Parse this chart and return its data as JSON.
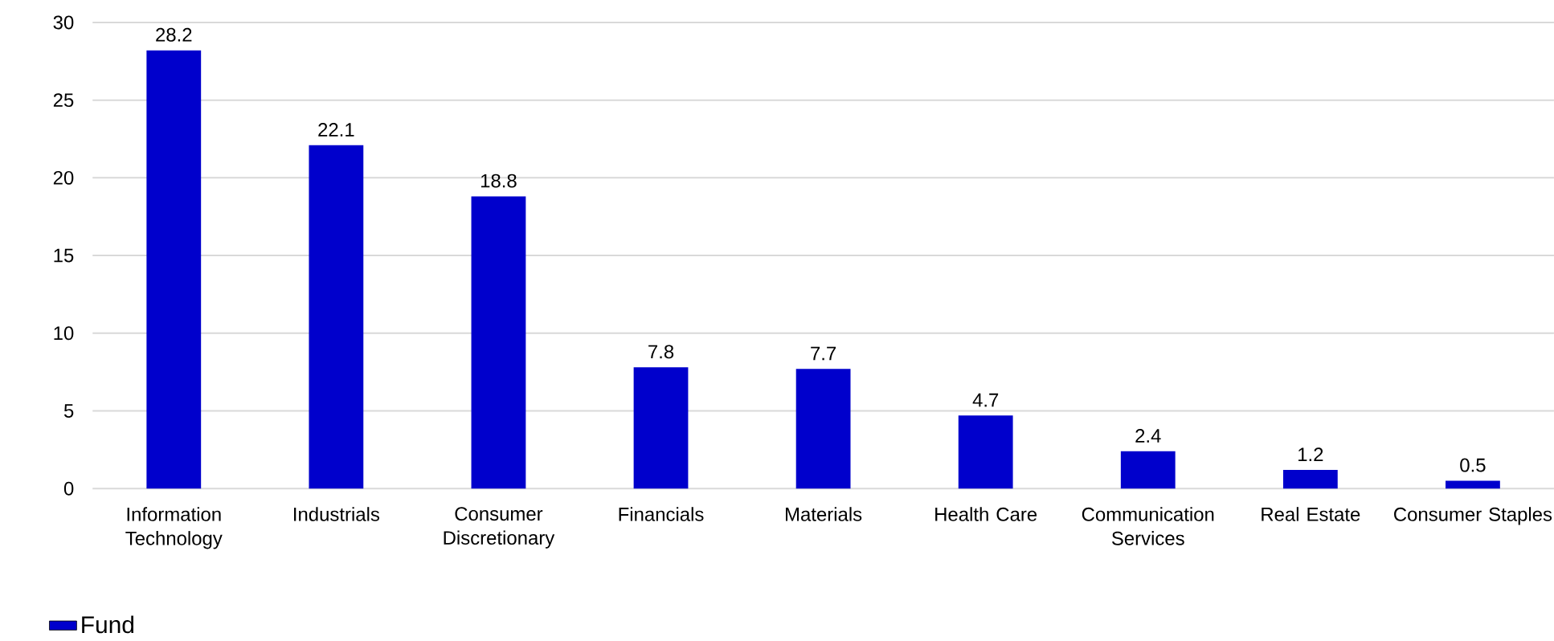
{
  "chart_data": {
    "type": "bar",
    "categories": [
      "Information Technology",
      "Industrials",
      "Consumer Discretionary",
      "Financials",
      "Materials",
      "Health Care",
      "Communication Services",
      "Real Estate",
      "Consumer Staples"
    ],
    "series": [
      {
        "name": "Fund",
        "color": "#0000cc",
        "values": [
          28.2,
          22.1,
          18.8,
          7.8,
          7.7,
          4.7,
          2.4,
          1.2,
          0.5
        ]
      }
    ],
    "ylim": [
      0,
      30
    ],
    "yticks": [
      0,
      5,
      10,
      15,
      20,
      25,
      30
    ],
    "grid": "y",
    "legend": "bottom left",
    "data_labels": true
  }
}
